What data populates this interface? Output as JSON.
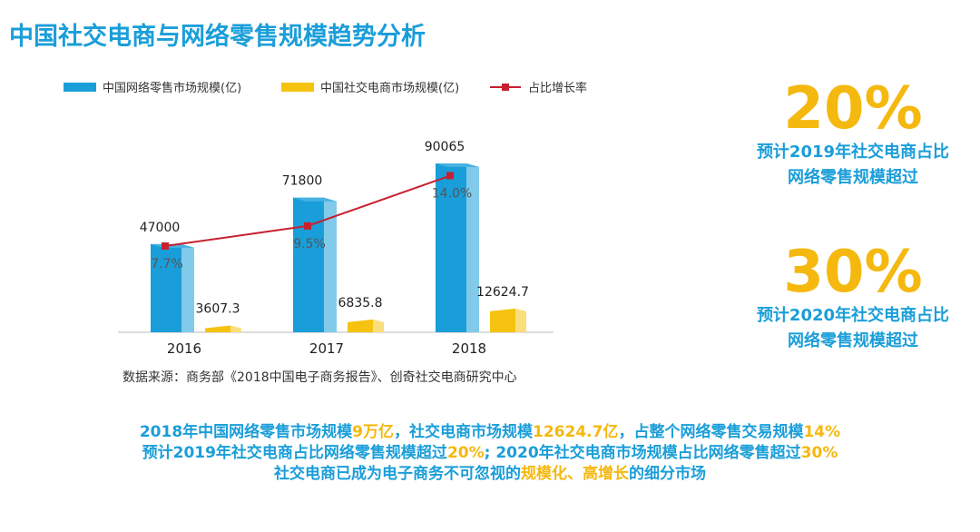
{
  "title": "中国社交电商与网络零售规模趋势分析",
  "chart_data": {
    "type": "bar",
    "categories": [
      "2016",
      "2017",
      "2018"
    ],
    "series": [
      {
        "name": "中国网络零售市场规模(亿)",
        "values": [
          47000,
          71800,
          90065
        ],
        "color": "#1a9ed9"
      },
      {
        "name": "中国社交电商市场规模(亿)",
        "values": [
          3607.3,
          6835.8,
          12624.7
        ],
        "color": "#f5c30f"
      }
    ],
    "line_series": {
      "name": "占比增长率",
      "values": [
        7.7,
        9.5,
        14.0
      ],
      "labels": [
        "7.7%",
        "9.5%",
        "14.0%"
      ],
      "color": "#c8202f"
    },
    "legend_position": "top",
    "grid": false
  },
  "source": "数据来源：商务部《2018中国电子商务报告》、创奇社交电商研究中心",
  "kpis": [
    {
      "value": "20%",
      "line1": "预计2019年社交电商占比",
      "line2": "网络零售规模超过"
    },
    {
      "value": "30%",
      "line1": "预计2020年社交电商占比",
      "line2": "网络零售规模超过"
    }
  ],
  "summary": [
    [
      {
        "text": "2018年中国网络零售市场规模",
        "hl": false
      },
      {
        "text": "9万亿",
        "hl": true
      },
      {
        "text": "，社交电商市场规模",
        "hl": false
      },
      {
        "text": "12624.7亿",
        "hl": true
      },
      {
        "text": "，占整个网络零售交易规模",
        "hl": false
      },
      {
        "text": "14%",
        "hl": true
      }
    ],
    [
      {
        "text": "预计2019年社交电商占比网络零售规模超过",
        "hl": false
      },
      {
        "text": "20%",
        "hl": true
      },
      {
        "text": "; 2020年社交电商市场规模占比网络零售超过",
        "hl": false
      },
      {
        "text": "30%",
        "hl": true
      }
    ],
    [
      {
        "text": "社交电商已成为电子商务不可忽视的",
        "hl": false
      },
      {
        "text": "规模化、高增长",
        "hl": true
      },
      {
        "text": "的细分市场",
        "hl": false
      }
    ]
  ]
}
